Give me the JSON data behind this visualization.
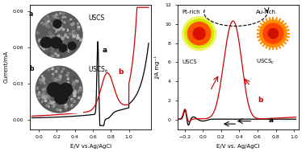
{
  "left_panel": {
    "xlim": [
      -0.1,
      1.25
    ],
    "ylim": [
      -0.008,
      0.095
    ],
    "yticks": [
      0.0,
      0.03,
      0.06,
      0.09
    ],
    "xticks": [
      0.0,
      0.2,
      0.4,
      0.6,
      0.8,
      1.0
    ],
    "xlabel": "E/V vs.Ag/AgCl",
    "ylabel": "Current/mA",
    "curve_a_color": "#000000",
    "curve_b_color": "#cc0000"
  },
  "right_panel": {
    "xlim": [
      -0.28,
      1.05
    ],
    "ylim": [
      -1.0,
      12.0
    ],
    "yticks": [
      0,
      2,
      4,
      6,
      8,
      10,
      12
    ],
    "xticks": [
      -0.2,
      0.0,
      0.2,
      0.4,
      0.6,
      0.8,
      1.0
    ],
    "xlabel": "E/V vs. Ag/AgCl",
    "ylabel": "J/A mg⁻¹",
    "curve_a_color": "#000000",
    "curve_b_color": "#cc0000"
  },
  "background_color": "#ffffff",
  "inset_a_colors": {
    "outer": "#d4e800",
    "mid": "#ff4400",
    "inner": "#cc1100"
  },
  "inset_b_colors": {
    "outer": "#ff8c00",
    "mid": "#ff3300",
    "inner": "#cc1100"
  }
}
